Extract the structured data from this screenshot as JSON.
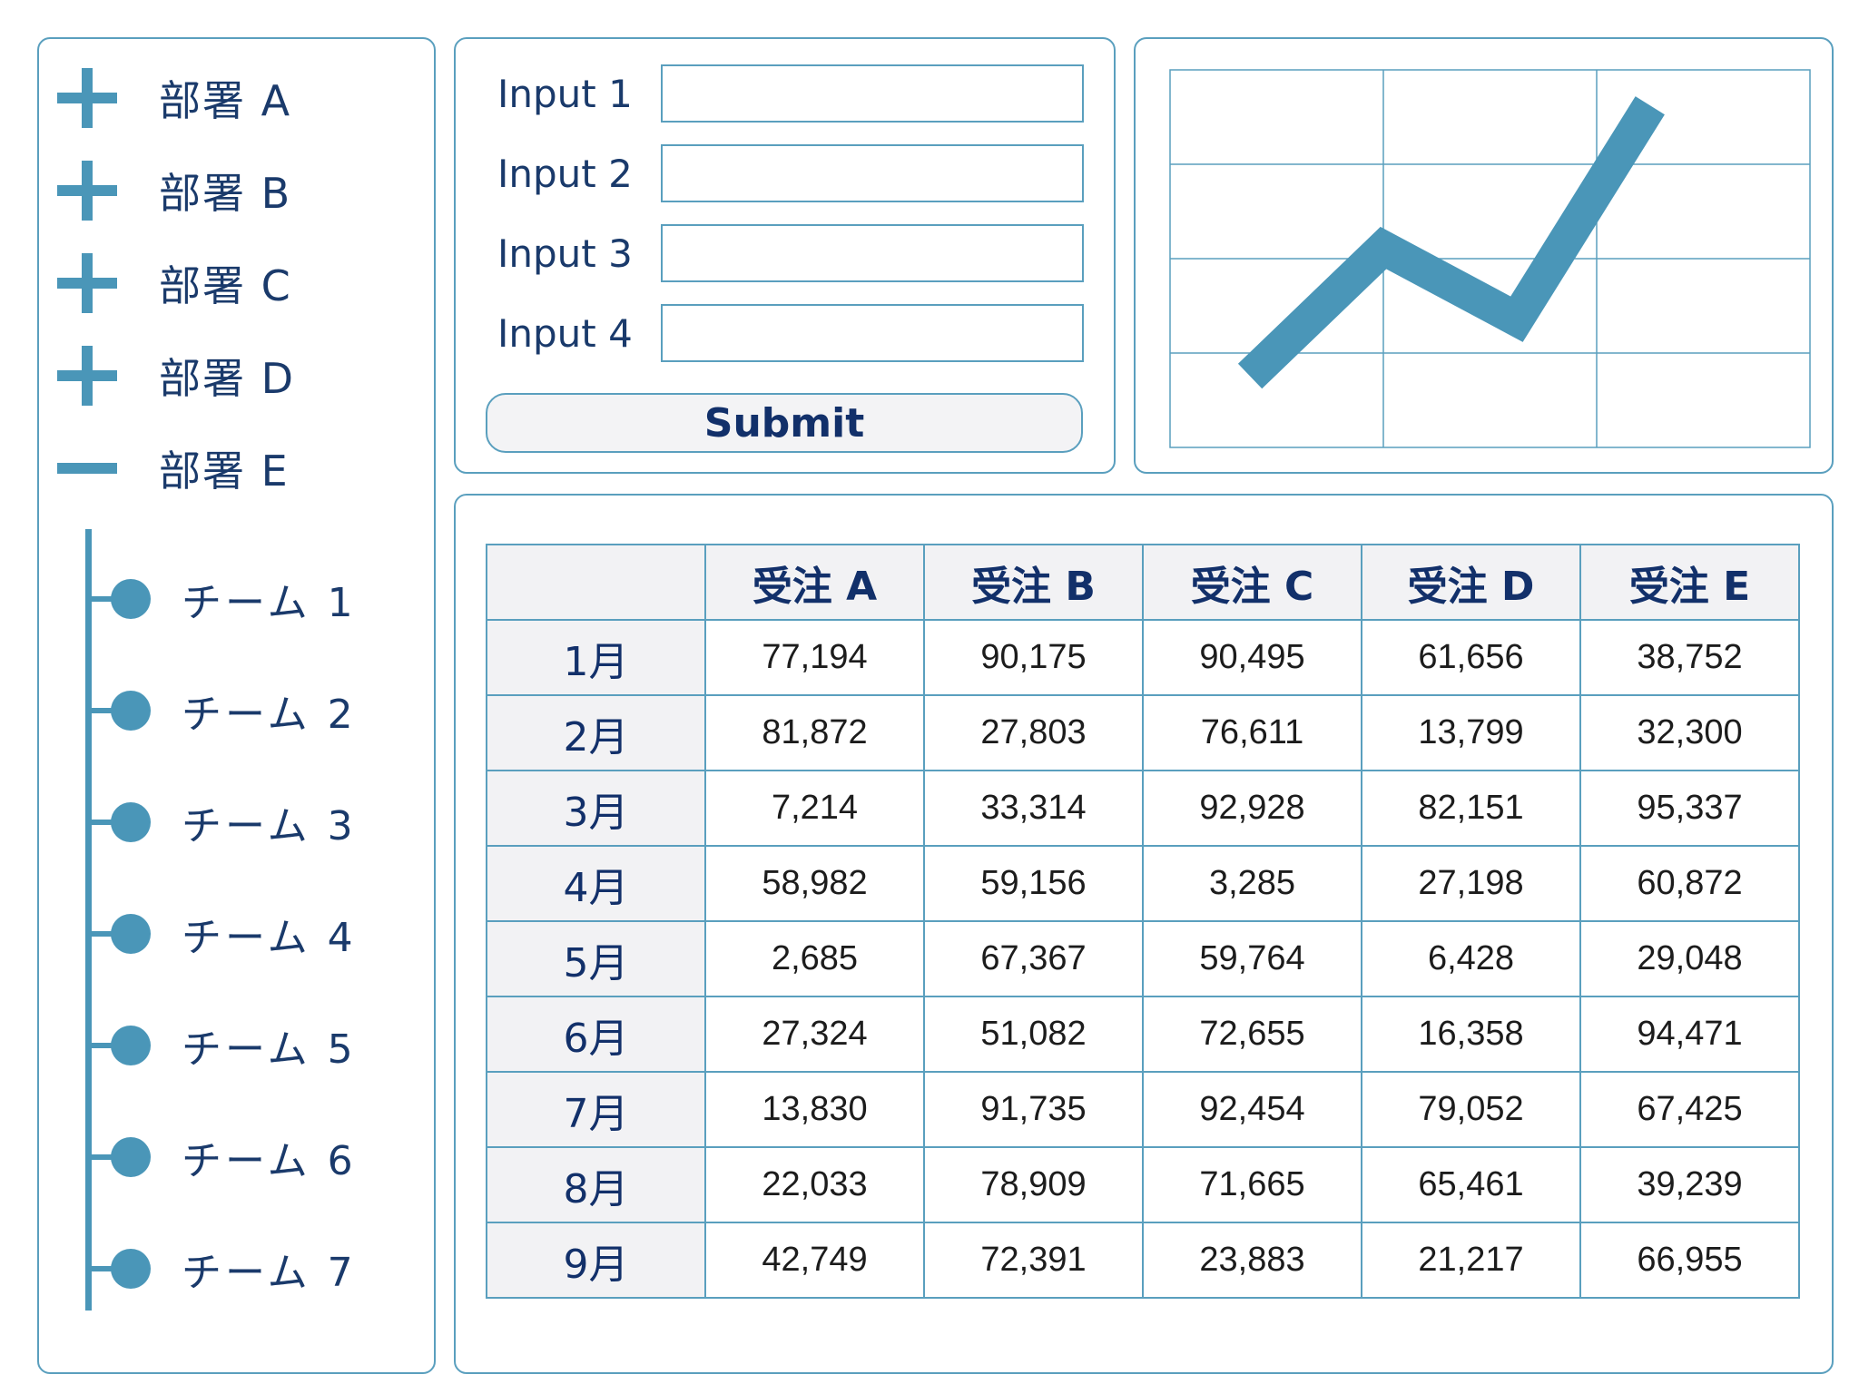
{
  "colors": {
    "accent": "#4a96b8",
    "border": "#5a9fbe",
    "text": "#1a3a6b",
    "header_bg": "#f2f2f4"
  },
  "sidebar": {
    "departments": [
      {
        "label": "部署 A",
        "icon": "plus-icon",
        "expanded": false
      },
      {
        "label": "部署 B",
        "icon": "plus-icon",
        "expanded": false
      },
      {
        "label": "部署 C",
        "icon": "plus-icon",
        "expanded": false
      },
      {
        "label": "部署 D",
        "icon": "plus-icon",
        "expanded": false
      },
      {
        "label": "部署 E",
        "icon": "minus-icon",
        "expanded": true
      }
    ],
    "teams": [
      {
        "label": "チーム 1"
      },
      {
        "label": "チーム 2"
      },
      {
        "label": "チーム 3"
      },
      {
        "label": "チーム 4"
      },
      {
        "label": "チーム 5"
      },
      {
        "label": "チーム 6"
      },
      {
        "label": "チーム 7"
      }
    ]
  },
  "form": {
    "fields": [
      {
        "label": "Input 1",
        "value": ""
      },
      {
        "label": "Input 2",
        "value": ""
      },
      {
        "label": "Input 3",
        "value": ""
      },
      {
        "label": "Input 4",
        "value": ""
      }
    ],
    "submit_label": "Submit"
  },
  "chart_data": {
    "type": "line",
    "grid": true,
    "grid_columns": 3,
    "grid_rows": 4,
    "title": "",
    "xlabel": "",
    "ylabel": "",
    "points": [
      {
        "x": 0,
        "y": 1.0
      },
      {
        "x": 1,
        "y": 2.8
      },
      {
        "x": 2,
        "y": 1.8
      },
      {
        "x": 3,
        "y": 4.8
      }
    ],
    "xlim": [
      -0.6,
      4.2
    ],
    "ylim": [
      0,
      5.3
    ]
  },
  "table": {
    "corner": "",
    "columns": [
      "受注 A",
      "受注 B",
      "受注 C",
      "受注 D",
      "受注 E"
    ],
    "rows": [
      {
        "label": "1月",
        "values": [
          "77,194",
          "90,175",
          "90,495",
          "61,656",
          "38,752"
        ]
      },
      {
        "label": "2月",
        "values": [
          "81,872",
          "27,803",
          "76,611",
          "13,799",
          "32,300"
        ]
      },
      {
        "label": "3月",
        "values": [
          "7,214",
          "33,314",
          "92,928",
          "82,151",
          "95,337"
        ]
      },
      {
        "label": "4月",
        "values": [
          "58,982",
          "59,156",
          "3,285",
          "27,198",
          "60,872"
        ]
      },
      {
        "label": "5月",
        "values": [
          "2,685",
          "67,367",
          "59,764",
          "6,428",
          "29,048"
        ]
      },
      {
        "label": "6月",
        "values": [
          "27,324",
          "51,082",
          "72,655",
          "16,358",
          "94,471"
        ]
      },
      {
        "label": "7月",
        "values": [
          "13,830",
          "91,735",
          "92,454",
          "79,052",
          "67,425"
        ]
      },
      {
        "label": "8月",
        "values": [
          "22,033",
          "78,909",
          "71,665",
          "65,461",
          "39,239"
        ]
      },
      {
        "label": "9月",
        "values": [
          "42,749",
          "72,391",
          "23,883",
          "21,217",
          "66,955"
        ]
      }
    ]
  }
}
